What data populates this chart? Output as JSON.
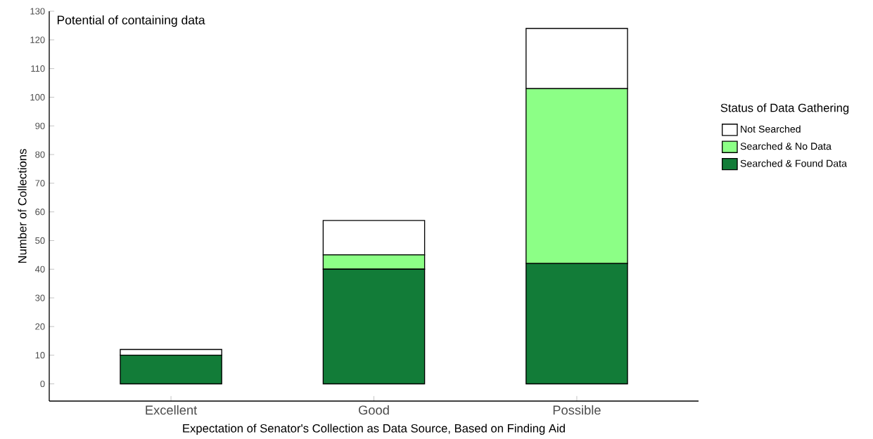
{
  "chart_data": {
    "type": "bar",
    "title": "Potential of containing data",
    "xlabel": "Expectation of Senator's Collection as Data Source, Based on Finding Aid",
    "ylabel": "Number of Collections",
    "legend_title": "Status of Data Gathering",
    "categories": [
      "Excellent",
      "Good",
      "Possible"
    ],
    "stacked": true,
    "series": [
      {
        "name": "Searched & Found Data",
        "color": "#127c38",
        "values": [
          10,
          40,
          42
        ]
      },
      {
        "name": "Searched & No Data",
        "color": "#8cff86",
        "values": [
          0,
          5,
          61
        ]
      },
      {
        "name": "Not Searched",
        "color": "#ffffff",
        "values": [
          2,
          12,
          21
        ]
      }
    ],
    "ylim": [
      -6,
      130
    ],
    "yticks": [
      0,
      10,
      20,
      30,
      40,
      50,
      60,
      70,
      80,
      90,
      100,
      110,
      120,
      130
    ],
    "grid": false,
    "legend": "right"
  }
}
